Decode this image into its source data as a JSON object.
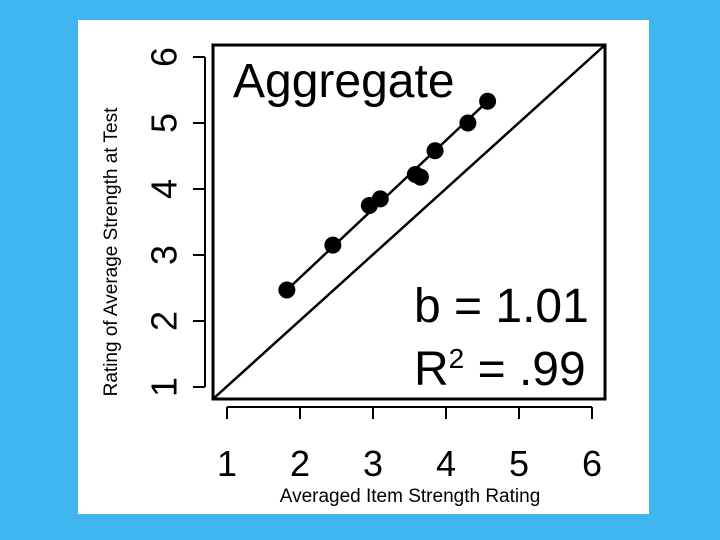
{
  "background_color": "#3fb6ef",
  "panel_color": "#ffffff",
  "chart_data": {
    "type": "scatter",
    "title": "Aggregate",
    "xlabel": "Averaged Item Strength Rating",
    "ylabel": "Rating of Average Strength at Test",
    "xlim": [
      1,
      6
    ],
    "ylim": [
      1,
      6
    ],
    "x_ticks": [
      "1",
      "2",
      "3",
      "4",
      "5",
      "6"
    ],
    "y_ticks": [
      "1",
      "2",
      "3",
      "4",
      "5",
      "6"
    ],
    "grid": false,
    "series": [
      {
        "points": [
          {
            "x": 1.82,
            "y": 2.47
          },
          {
            "x": 2.45,
            "y": 3.15
          },
          {
            "x": 2.95,
            "y": 3.75
          },
          {
            "x": 3.1,
            "y": 3.85
          },
          {
            "x": 3.58,
            "y": 4.22
          },
          {
            "x": 3.65,
            "y": 4.18
          },
          {
            "x": 3.85,
            "y": 4.58
          },
          {
            "x": 4.3,
            "y": 5.0
          },
          {
            "x": 4.57,
            "y": 5.33
          }
        ]
      }
    ],
    "fit_line": {
      "x": [
        1.82,
        4.57
      ],
      "y": [
        2.47,
        5.33
      ]
    },
    "identity_line": true,
    "annotations": {
      "b_text": "b = 1.01",
      "r2_prefix": "R",
      "r2_sup": "2",
      "r2_suffix": " = .99"
    }
  }
}
